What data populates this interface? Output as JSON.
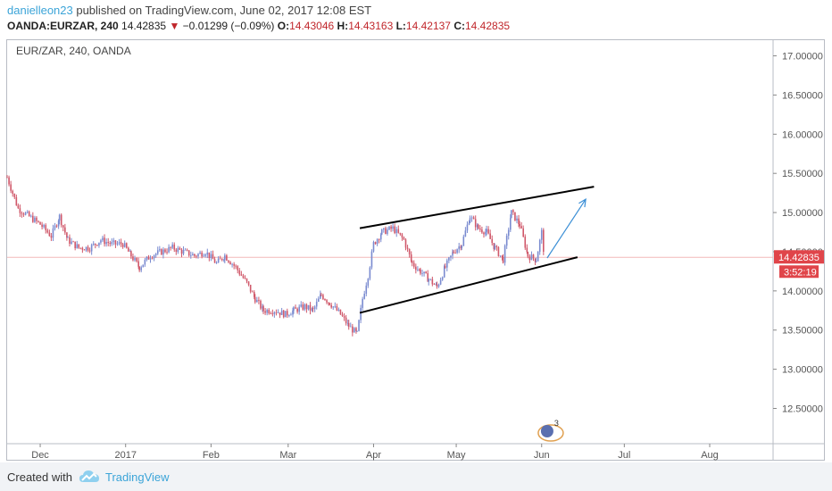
{
  "header": {
    "username": "danielleon23",
    "publish_text": " published on TradingView.com, June 02, 2017 12:08 EST",
    "symbol_full": "OANDA:EURZAR, 240",
    "last": "14.42835",
    "change_arrow": "▼",
    "change": "−0.01299 (−0.09%)",
    "open_label": "O:",
    "open": "14.43046",
    "high_label": "H:",
    "high": "14.43163",
    "low_label": "L:",
    "low": "14.42137",
    "close_label": "C:",
    "close": "14.42835"
  },
  "chart_label": "EUR/ZAR, 240, OANDA",
  "footer": {
    "created_with": "Created with",
    "brand": "TradingView"
  },
  "colors": {
    "up_candle": "#7a8bd0",
    "down_candle": "#d0586a",
    "price_line": "#f2b8b8",
    "price_tag": "#e0454a",
    "arrow": "#3b8fd6",
    "trendline": "#000000"
  },
  "chart_data": {
    "type": "line",
    "ylim": [
      12.05,
      17.2
    ],
    "y_ticks": [
      "17.00000",
      "16.50000",
      "16.00000",
      "15.50000",
      "15.00000",
      "14.50000",
      "14.00000",
      "13.50000",
      "13.00000",
      "12.50000"
    ],
    "y_tick_values": [
      17.0,
      16.5,
      16.0,
      15.5,
      15.0,
      14.5,
      14.0,
      13.5,
      13.0,
      12.5
    ],
    "x_ticks": [
      "Dec",
      "2017",
      "Feb",
      "Mar",
      "Apr",
      "May",
      "Jun",
      "Jul",
      "Aug"
    ],
    "x_tick_dates": [
      "2016-12-01",
      "2017-01-01",
      "2017-02-01",
      "2017-03-01",
      "2017-04-01",
      "2017-05-01",
      "2017-06-01",
      "2017-07-01",
      "2017-08-01"
    ],
    "x_range": [
      "2016-11-19",
      "2017-08-24"
    ],
    "series": [
      {
        "values": [
          [
            "2016-11-19",
            15.45
          ],
          [
            "2016-11-23",
            15.05
          ],
          [
            "2016-11-27",
            14.95
          ],
          [
            "2016-12-01",
            14.85
          ],
          [
            "2016-12-05",
            14.7
          ],
          [
            "2016-12-08",
            14.95
          ],
          [
            "2016-12-11",
            14.65
          ],
          [
            "2016-12-15",
            14.55
          ],
          [
            "2016-12-19",
            14.55
          ],
          [
            "2016-12-23",
            14.65
          ],
          [
            "2016-12-27",
            14.6
          ],
          [
            "2016-12-31",
            14.6
          ],
          [
            "2017-01-03",
            14.45
          ],
          [
            "2017-01-06",
            14.3
          ],
          [
            "2017-01-10",
            14.45
          ],
          [
            "2017-01-14",
            14.5
          ],
          [
            "2017-01-18",
            14.55
          ],
          [
            "2017-01-22",
            14.5
          ],
          [
            "2017-01-26",
            14.45
          ],
          [
            "2017-01-30",
            14.5
          ],
          [
            "2017-02-03",
            14.35
          ],
          [
            "2017-02-06",
            14.45
          ],
          [
            "2017-02-10",
            14.3
          ],
          [
            "2017-02-14",
            14.1
          ],
          [
            "2017-02-17",
            13.9
          ],
          [
            "2017-02-20",
            13.75
          ],
          [
            "2017-02-24",
            13.75
          ],
          [
            "2017-02-28",
            13.7
          ],
          [
            "2017-03-03",
            13.75
          ],
          [
            "2017-03-07",
            13.8
          ],
          [
            "2017-03-10",
            13.75
          ],
          [
            "2017-03-13",
            13.95
          ],
          [
            "2017-03-16",
            13.85
          ],
          [
            "2017-03-20",
            13.7
          ],
          [
            "2017-03-23",
            13.55
          ],
          [
            "2017-03-26",
            13.45
          ],
          [
            "2017-03-28",
            13.9
          ],
          [
            "2017-03-30",
            14.2
          ],
          [
            "2017-04-01",
            14.6
          ],
          [
            "2017-04-04",
            14.75
          ],
          [
            "2017-04-08",
            14.8
          ],
          [
            "2017-04-12",
            14.65
          ],
          [
            "2017-04-15",
            14.35
          ],
          [
            "2017-04-18",
            14.25
          ],
          [
            "2017-04-21",
            14.15
          ],
          [
            "2017-04-24",
            14.05
          ],
          [
            "2017-04-27",
            14.3
          ],
          [
            "2017-04-30",
            14.5
          ],
          [
            "2017-05-03",
            14.6
          ],
          [
            "2017-05-06",
            14.95
          ],
          [
            "2017-05-09",
            14.8
          ],
          [
            "2017-05-12",
            14.75
          ],
          [
            "2017-05-15",
            14.55
          ],
          [
            "2017-05-18",
            14.4
          ],
          [
            "2017-05-21",
            15.0
          ],
          [
            "2017-05-24",
            14.85
          ],
          [
            "2017-05-27",
            14.45
          ],
          [
            "2017-05-30",
            14.4
          ],
          [
            "2017-06-01",
            14.75
          ],
          [
            "2017-06-02",
            14.43
          ]
        ]
      }
    ],
    "current_price": "14.42835",
    "countdown": "3:52:19",
    "trendlines": [
      {
        "from": [
          "2017-03-27",
          14.8
        ],
        "to": [
          "2017-06-20",
          15.33
        ]
      },
      {
        "from": [
          "2017-03-27",
          13.72
        ],
        "to": [
          "2017-06-14",
          14.43
        ]
      }
    ],
    "projection_arrow": {
      "from": [
        "2017-06-03",
        14.42
      ],
      "to": [
        "2017-06-17",
        15.17
      ]
    },
    "event_marker": {
      "date": "2017-06-03",
      "count": "3"
    }
  }
}
